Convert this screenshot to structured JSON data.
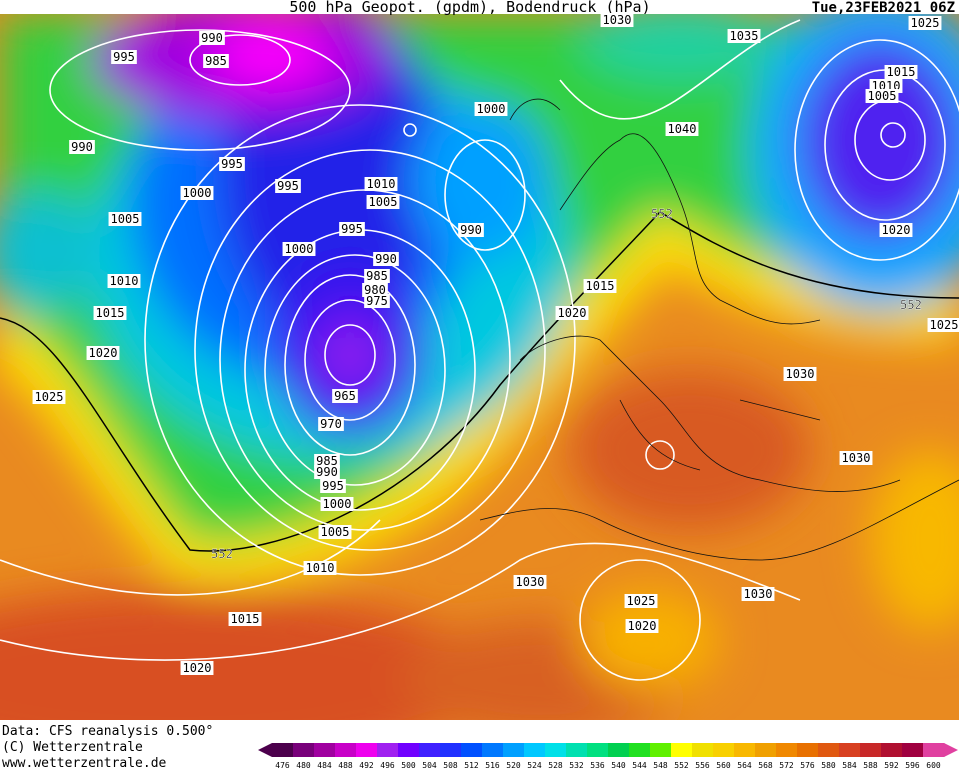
{
  "header": {
    "title": "500 hPa Geopot. (gpdm), Bodendruck (hPa)",
    "date": "Tue,23FEB2021 06Z"
  },
  "isobar_labels": [
    "990",
    "985",
    "995",
    "990",
    "995",
    "995",
    "1000",
    "1005",
    "1010",
    "1005",
    "995",
    "1000",
    "1000",
    "990",
    "990",
    "985",
    "980",
    "975",
    "965",
    "970",
    "985",
    "990",
    "995",
    "1000",
    "1005",
    "1010",
    "1015",
    "1020",
    "1010",
    "1015",
    "1020",
    "1025",
    "1015",
    "1020",
    "1030",
    "1035",
    "1040",
    "1025",
    "1015",
    "1010",
    "1005",
    "1020",
    "1030",
    "1030",
    "1030",
    "1025",
    "1020",
    "1030",
    "1025"
  ],
  "contour_labels": [
    "552",
    "552",
    "552"
  ],
  "footer": {
    "source": "Data: CFS reanalysis 0.500°",
    "copyright": "(C) Wetterzentrale",
    "website": "www.wetterzentrale.de"
  },
  "colorbar": {
    "labels": [
      "476",
      "480",
      "484",
      "488",
      "492",
      "496",
      "500",
      "504",
      "508",
      "512",
      "516",
      "520",
      "524",
      "528",
      "532",
      "536",
      "540",
      "544",
      "548",
      "552",
      "556",
      "560",
      "564",
      "568",
      "572",
      "576",
      "580",
      "584",
      "588",
      "592",
      "596",
      "600"
    ],
    "colors": [
      "#4c004c",
      "#78007a",
      "#a000a0",
      "#c800c8",
      "#ee00ee",
      "#a020f0",
      "#7000ff",
      "#4020ff",
      "#2030ff",
      "#0050ff",
      "#0078ff",
      "#00a0ff",
      "#00c8ff",
      "#00e0e8",
      "#00e0b0",
      "#00e080",
      "#00d050",
      "#20e020",
      "#60f000",
      "#ffff00",
      "#f0e000",
      "#f8d000",
      "#f8b800",
      "#f0a000",
      "#f08800",
      "#e87000",
      "#e05810",
      "#d84020",
      "#c82828",
      "#b01030",
      "#a00040",
      "#e040a0"
    ]
  }
}
